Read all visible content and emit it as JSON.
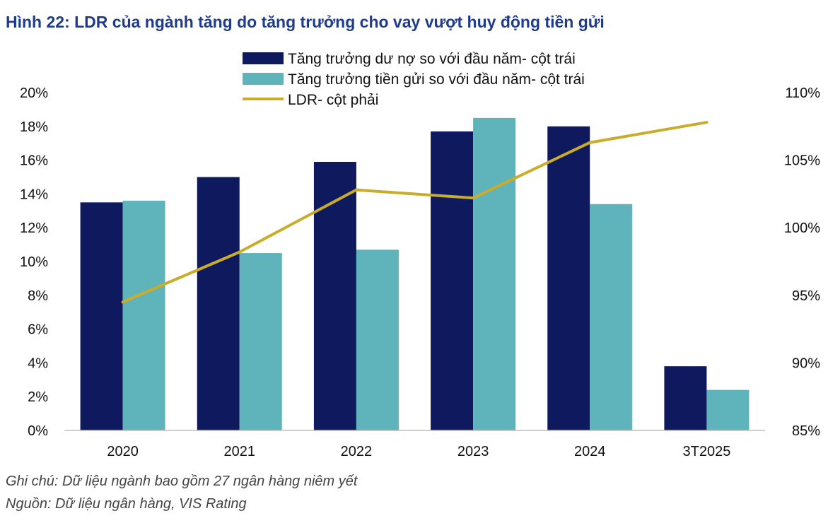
{
  "title": "Hình 22: LDR của ngành tăng do tăng trưởng cho vay vượt huy động tiền gửi",
  "note": "Ghi chú: Dữ liệu ngành bao gồm 27 ngân hàng niêm yết",
  "source": "Nguồn: Dữ liệu ngân hàng, VIS Rating",
  "chart_data": {
    "type": "bar",
    "categories": [
      "2020",
      "2021",
      "2022",
      "2023",
      "2024",
      "3T2025"
    ],
    "series": [
      {
        "name": "Tăng trưởng dư nợ so với đầu năm- cột trái",
        "type": "bar",
        "axis": "left",
        "color": "#0f1a5e",
        "values": [
          13.5,
          15.0,
          15.9,
          17.7,
          18.0,
          3.8
        ]
      },
      {
        "name": "Tăng trưởng tiền gửi so với đầu năm- cột trái",
        "type": "bar",
        "axis": "left",
        "color": "#5fb4bb",
        "values": [
          13.6,
          10.5,
          10.7,
          18.5,
          13.4,
          2.4
        ]
      },
      {
        "name": "LDR- cột phải",
        "type": "line",
        "axis": "right",
        "color": "#c9ac29",
        "values": [
          94.5,
          98.2,
          102.8,
          102.2,
          106.3,
          107.8
        ]
      }
    ],
    "y_left": {
      "min": 0,
      "max": 20,
      "step": 2,
      "ticks": [
        "0%",
        "2%",
        "4%",
        "6%",
        "8%",
        "10%",
        "12%",
        "14%",
        "16%",
        "18%",
        "20%"
      ]
    },
    "y_right": {
      "min": 85,
      "max": 110,
      "step": 5,
      "ticks": [
        "85%",
        "90%",
        "95%",
        "100%",
        "105%",
        "110%"
      ]
    },
    "grid": false,
    "legend_position": "top"
  }
}
